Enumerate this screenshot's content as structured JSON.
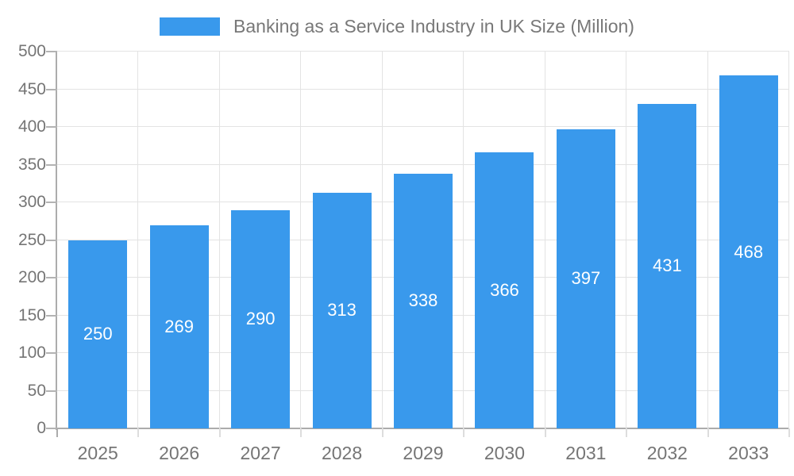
{
  "chart_data": {
    "type": "bar",
    "title": "Banking as a Service Industry in UK Size (Million)",
    "legend_position": "top",
    "categories": [
      "2025",
      "2026",
      "2027",
      "2028",
      "2029",
      "2030",
      "2031",
      "2032",
      "2033"
    ],
    "values": [
      250,
      269,
      290,
      313,
      338,
      366,
      397,
      431,
      468
    ],
    "bar_value_labels": [
      "250",
      "269",
      "290",
      "313",
      "338",
      "366",
      "397",
      "431",
      "468"
    ],
    "xlabel": "",
    "ylabel": "",
    "ylim": [
      0,
      500
    ],
    "ytick_step": 50,
    "ytick_labels": [
      "0",
      "50",
      "100",
      "150",
      "200",
      "250",
      "300",
      "350",
      "400",
      "450",
      "500"
    ],
    "grid": true,
    "colors": {
      "bar": "#3999EC",
      "bar_label": "#FFFFFF",
      "axis_text": "#757575",
      "title_text": "#787878",
      "grid_line": "#E3E3E3",
      "axis_line": "#ACACAC",
      "tick_line": "#B3B3B3",
      "minor_tick_line": "#DDDDDD",
      "background": "#FFFFFF"
    }
  }
}
